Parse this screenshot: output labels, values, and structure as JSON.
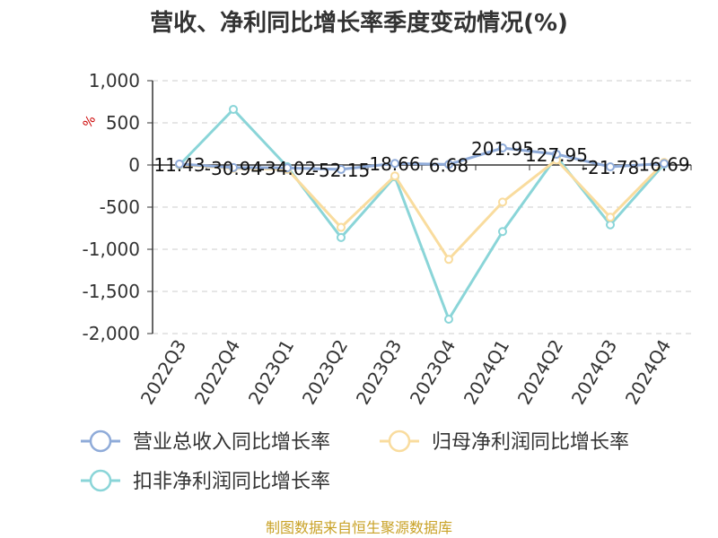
{
  "chart_data": {
    "type": "line",
    "title": "营收、净利同比增长率季度变动情况(%)",
    "unit_mark": "%",
    "categories": [
      "2022Q3",
      "2022Q4",
      "2023Q1",
      "2023Q2",
      "2023Q3",
      "2023Q4",
      "2024Q1",
      "2024Q2",
      "2024Q3",
      "2024Q4"
    ],
    "ylim": [
      -2000,
      1000
    ],
    "yticks": [
      1000,
      500,
      0,
      -500,
      -1000,
      -1500,
      -2000
    ],
    "ytick_labels": [
      "1,000",
      "500",
      "0",
      "-500",
      "-1,000",
      "-1,500",
      "-2,000"
    ],
    "grid": true,
    "legend_position": "bottom",
    "series": [
      {
        "name": "营业总收入同比增长率",
        "color": "#8fabd9",
        "values": [
          11.43,
          -30.94,
          -34.02,
          -52.15,
          18.66,
          6.68,
          201.95,
          127.95,
          -21.78,
          16.69
        ],
        "labels": [
          "11.43",
          "-30.94",
          "-34.02",
          "-52.15",
          "18.66",
          "6.68",
          "201.95",
          "127.95",
          "-21.78",
          "16.69"
        ]
      },
      {
        "name": "归母净利润同比增长率",
        "color": "#f9dc9e",
        "values": [
          5,
          -40,
          -50,
          -740,
          -130,
          -1120,
          -440,
          60,
          -620,
          30
        ]
      },
      {
        "name": "扣非净利润同比增长率",
        "color": "#8ad5d8",
        "values": [
          0,
          660,
          -20,
          -860,
          -140,
          -1830,
          -790,
          100,
          -710,
          10
        ]
      }
    ]
  },
  "footer": {
    "source": "制图数据来自恒生聚源数据库"
  }
}
